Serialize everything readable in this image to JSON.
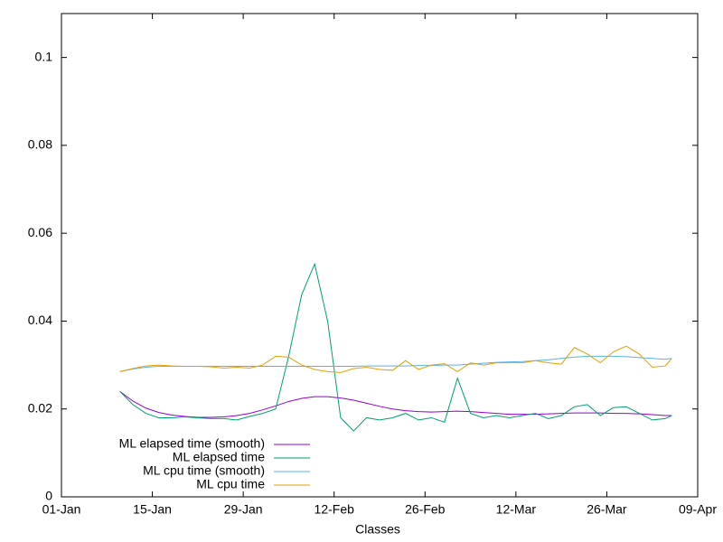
{
  "chart_data": {
    "type": "line",
    "xlabel": "Classes",
    "xlim": [
      0,
      98
    ],
    "xticks": [
      {
        "value": 0,
        "label": "01-Jan"
      },
      {
        "value": 14,
        "label": "15-Jan"
      },
      {
        "value": 28,
        "label": "29-Jan"
      },
      {
        "value": 42,
        "label": "12-Feb"
      },
      {
        "value": 56,
        "label": "26-Feb"
      },
      {
        "value": 70,
        "label": "12-Mar"
      },
      {
        "value": 84,
        "label": "26-Mar"
      },
      {
        "value": 98,
        "label": "09-Apr"
      }
    ],
    "ylim": [
      0,
      0.11
    ],
    "yticks": [
      0,
      0.02,
      0.04,
      0.06,
      0.08,
      0.1
    ],
    "grid": false,
    "legend": "bottom-left",
    "x": [
      9,
      11,
      13,
      15,
      17,
      19,
      21,
      23,
      25,
      27,
      29,
      31,
      33,
      35,
      37,
      39,
      41,
      43,
      45,
      47,
      49,
      51,
      53,
      55,
      57,
      59,
      61,
      63,
      65,
      67,
      69,
      71,
      73,
      75,
      77,
      79,
      81,
      83,
      85,
      87,
      89,
      91,
      93,
      94
    ],
    "series": [
      {
        "name": "ML elapsed time (smooth)",
        "color": "#9400d3",
        "values": [
          0.024,
          0.0218,
          0.0202,
          0.0192,
          0.0186,
          0.0183,
          0.0181,
          0.0181,
          0.0182,
          0.0185,
          0.019,
          0.0198,
          0.0207,
          0.0217,
          0.0224,
          0.0228,
          0.0228,
          0.0225,
          0.022,
          0.0213,
          0.0206,
          0.02,
          0.0196,
          0.0194,
          0.0193,
          0.0194,
          0.0195,
          0.0194,
          0.0192,
          0.019,
          0.0188,
          0.0188,
          0.0188,
          0.0189,
          0.019,
          0.0191,
          0.0191,
          0.0191,
          0.019,
          0.019,
          0.0189,
          0.0187,
          0.0185,
          0.0185
        ]
      },
      {
        "name": "ML elapsed time",
        "color": "#009e73",
        "values": [
          0.024,
          0.021,
          0.019,
          0.018,
          0.018,
          0.0182,
          0.018,
          0.0178,
          0.0178,
          0.0175,
          0.0183,
          0.019,
          0.02,
          0.032,
          0.046,
          0.053,
          0.04,
          0.018,
          0.015,
          0.018,
          0.0175,
          0.018,
          0.019,
          0.0175,
          0.018,
          0.017,
          0.027,
          0.019,
          0.018,
          0.0185,
          0.018,
          0.0185,
          0.019,
          0.0178,
          0.0185,
          0.0205,
          0.021,
          0.0185,
          0.0203,
          0.0205,
          0.019,
          0.0175,
          0.0178,
          0.0185
        ]
      },
      {
        "name": "ML cpu time (smooth)",
        "color": "#56b4e9",
        "values": [
          0.0285,
          0.0291,
          0.0295,
          0.0297,
          0.0297,
          0.0297,
          0.0297,
          0.0297,
          0.0297,
          0.0297,
          0.0297,
          0.0297,
          0.0297,
          0.0297,
          0.0297,
          0.0297,
          0.0297,
          0.0297,
          0.0297,
          0.0298,
          0.0298,
          0.0298,
          0.0298,
          0.0299,
          0.0299,
          0.03,
          0.03,
          0.0302,
          0.0304,
          0.0306,
          0.0307,
          0.0308,
          0.031,
          0.0312,
          0.0315,
          0.0318,
          0.032,
          0.032,
          0.032,
          0.0319,
          0.0317,
          0.0315,
          0.0313,
          0.0315
        ]
      },
      {
        "name": "ML cpu time",
        "color": "#e69f00",
        "values": [
          0.0285,
          0.0292,
          0.0298,
          0.03,
          0.0298,
          0.0297,
          0.0297,
          0.0296,
          0.0293,
          0.0295,
          0.0293,
          0.03,
          0.032,
          0.0318,
          0.03,
          0.029,
          0.0285,
          0.0283,
          0.0292,
          0.0295,
          0.029,
          0.0288,
          0.031,
          0.029,
          0.03,
          0.0303,
          0.0285,
          0.0305,
          0.03,
          0.0305,
          0.0305,
          0.0305,
          0.031,
          0.0305,
          0.0302,
          0.034,
          0.0325,
          0.0305,
          0.033,
          0.0343,
          0.0325,
          0.0295,
          0.0298,
          0.0315
        ]
      }
    ]
  }
}
